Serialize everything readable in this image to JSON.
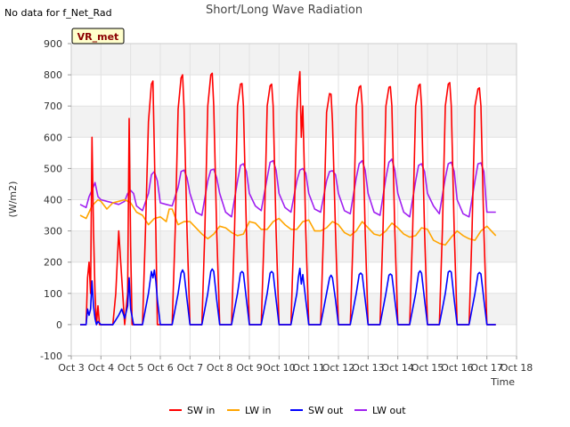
{
  "chart_data": {
    "type": "line",
    "title": "Short/Long Wave Radiation",
    "note": "No data for f_Net_Rad",
    "badge": "VR_met",
    "xlabel": "Time",
    "ylabel": "(W/m2)",
    "xlim": [
      3,
      18
    ],
    "ylim": [
      -100,
      900
    ],
    "x_ticks": [
      3,
      4,
      5,
      6,
      7,
      8,
      9,
      10,
      11,
      12,
      13,
      14,
      15,
      16,
      17,
      18
    ],
    "x_tick_labels": [
      "Oct 3",
      "Oct 4",
      "Oct 5",
      "Oct 6",
      "Oct 7",
      "Oct 8",
      "Oct 9",
      "Oct 10",
      "Oct 11",
      "Oct 12",
      "Oct 13",
      "Oct 14",
      "Oct 15",
      "Oct 16",
      "Oct 17",
      "Oct 18"
    ],
    "y_ticks": [
      -100,
      0,
      100,
      200,
      300,
      400,
      500,
      600,
      700,
      800,
      900
    ],
    "y_tick_labels": [
      "-100",
      "0",
      "100",
      "200",
      "300",
      "400",
      "500",
      "600",
      "700",
      "800",
      "900"
    ],
    "grid": true,
    "legend_position": "bottom",
    "series": [
      {
        "name": "SW in",
        "color": "#ff0000",
        "x": [
          3.3,
          3.5,
          3.55,
          3.6,
          3.65,
          3.7,
          3.75,
          3.8,
          3.85,
          3.9,
          3.95,
          4.0,
          4.4,
          4.5,
          4.6,
          4.8,
          4.9,
          4.95,
          5.0,
          5.05,
          5.1,
          5.15,
          5.2,
          5.3,
          5.4,
          5.5,
          5.6,
          5.7,
          5.75,
          5.8,
          5.85,
          5.9,
          6.0,
          6.1,
          6.2,
          6.4,
          6.5,
          6.6,
          6.7,
          6.75,
          6.8,
          6.9,
          7.0,
          7.2,
          7.4,
          7.5,
          7.6,
          7.7,
          7.75,
          7.8,
          7.9,
          8.0,
          8.2,
          8.4,
          8.5,
          8.6,
          8.7,
          8.75,
          8.8,
          8.9,
          9.0,
          9.2,
          9.4,
          9.5,
          9.6,
          9.7,
          9.75,
          9.8,
          9.9,
          10.0,
          10.2,
          10.4,
          10.5,
          10.6,
          10.65,
          10.7,
          10.75,
          10.8,
          10.85,
          10.9,
          11.0,
          11.2,
          11.4,
          11.5,
          11.6,
          11.7,
          11.75,
          11.8,
          11.9,
          12.0,
          12.2,
          12.4,
          12.5,
          12.6,
          12.7,
          12.75,
          12.8,
          12.9,
          13.0,
          13.2,
          13.4,
          13.5,
          13.6,
          13.7,
          13.75,
          13.8,
          13.9,
          14.0,
          14.2,
          14.4,
          14.5,
          14.6,
          14.7,
          14.75,
          14.8,
          14.9,
          15.0,
          15.2,
          15.4,
          15.5,
          15.6,
          15.7,
          15.75,
          15.8,
          15.9,
          16.0,
          16.2,
          16.4,
          16.5,
          16.6,
          16.7,
          16.75,
          16.8,
          16.9,
          17.0,
          17.3
        ],
        "y": [
          0,
          0,
          150,
          200,
          100,
          600,
          300,
          100,
          0,
          60,
          0,
          0,
          0,
          100,
          300,
          0,
          100,
          660,
          250,
          0,
          0,
          0,
          0,
          0,
          0,
          300,
          650,
          770,
          780,
          560,
          300,
          0,
          0,
          0,
          0,
          0,
          300,
          690,
          790,
          800,
          690,
          300,
          0,
          0,
          0,
          300,
          700,
          800,
          805,
          700,
          300,
          0,
          0,
          0,
          300,
          700,
          770,
          772,
          700,
          300,
          0,
          0,
          0,
          300,
          700,
          765,
          770,
          700,
          300,
          0,
          0,
          0,
          300,
          680,
          760,
          810,
          600,
          700,
          500,
          300,
          0,
          0,
          0,
          300,
          680,
          740,
          738,
          650,
          300,
          0,
          0,
          0,
          300,
          700,
          760,
          765,
          700,
          300,
          0,
          0,
          0,
          300,
          700,
          760,
          762,
          700,
          300,
          0,
          0,
          0,
          300,
          700,
          765,
          770,
          700,
          300,
          0,
          0,
          0,
          300,
          700,
          770,
          775,
          700,
          300,
          0,
          0,
          0,
          300,
          700,
          755,
          758,
          700,
          300,
          0,
          0
        ]
      },
      {
        "name": "LW in",
        "color": "#ffa500",
        "x": [
          3.3,
          3.5,
          3.7,
          3.9,
          4.0,
          4.2,
          4.4,
          4.6,
          4.8,
          5.0,
          5.2,
          5.4,
          5.6,
          5.8,
          6.0,
          6.2,
          6.3,
          6.4,
          6.6,
          6.8,
          7.0,
          7.2,
          7.4,
          7.6,
          7.8,
          8.0,
          8.2,
          8.4,
          8.6,
          8.8,
          9.0,
          9.2,
          9.4,
          9.6,
          9.8,
          10.0,
          10.2,
          10.4,
          10.6,
          10.8,
          11.0,
          11.2,
          11.4,
          11.6,
          11.8,
          12.0,
          12.2,
          12.4,
          12.6,
          12.8,
          13.0,
          13.2,
          13.4,
          13.6,
          13.8,
          14.0,
          14.2,
          14.4,
          14.6,
          14.8,
          15.0,
          15.2,
          15.4,
          15.6,
          15.8,
          16.0,
          16.2,
          16.4,
          16.6,
          16.8,
          17.0,
          17.3
        ],
        "y": [
          350,
          340,
          380,
          400,
          395,
          370,
          390,
          395,
          400,
          390,
          360,
          350,
          320,
          340,
          345,
          330,
          370,
          370,
          320,
          330,
          330,
          310,
          290,
          275,
          290,
          315,
          310,
          295,
          285,
          290,
          330,
          325,
          305,
          305,
          330,
          340,
          320,
          305,
          305,
          330,
          335,
          300,
          300,
          310,
          330,
          320,
          295,
          285,
          300,
          330,
          310,
          290,
          285,
          300,
          325,
          310,
          290,
          280,
          285,
          310,
          305,
          270,
          260,
          255,
          280,
          300,
          285,
          275,
          270,
          300,
          315,
          285
        ]
      },
      {
        "name": "SW out",
        "color": "#0000ff",
        "x": [
          3.3,
          3.5,
          3.55,
          3.6,
          3.65,
          3.7,
          3.75,
          3.8,
          3.85,
          3.9,
          4.0,
          4.4,
          4.6,
          4.7,
          4.8,
          4.9,
          4.95,
          5.0,
          5.1,
          5.2,
          5.4,
          5.6,
          5.7,
          5.75,
          5.8,
          5.85,
          5.9,
          6.0,
          6.4,
          6.6,
          6.7,
          6.75,
          6.8,
          6.9,
          7.0,
          7.4,
          7.6,
          7.7,
          7.75,
          7.8,
          7.9,
          8.0,
          8.4,
          8.6,
          8.7,
          8.75,
          8.8,
          8.9,
          9.0,
          9.4,
          9.6,
          9.7,
          9.75,
          9.8,
          9.9,
          10.0,
          10.4,
          10.6,
          10.65,
          10.7,
          10.75,
          10.8,
          10.9,
          11.0,
          11.4,
          11.6,
          11.7,
          11.75,
          11.8,
          11.9,
          12.0,
          12.4,
          12.6,
          12.7,
          12.75,
          12.8,
          12.9,
          13.0,
          13.4,
          13.6,
          13.7,
          13.75,
          13.8,
          13.9,
          14.0,
          14.4,
          14.6,
          14.7,
          14.75,
          14.8,
          14.9,
          15.0,
          15.4,
          15.6,
          15.7,
          15.75,
          15.8,
          15.9,
          16.0,
          16.4,
          16.6,
          16.7,
          16.75,
          16.8,
          16.9,
          17.0,
          17.3
        ],
        "y": [
          0,
          0,
          50,
          30,
          50,
          140,
          60,
          20,
          0,
          10,
          0,
          0,
          30,
          50,
          20,
          60,
          150,
          50,
          0,
          0,
          0,
          100,
          170,
          150,
          175,
          140,
          80,
          0,
          0,
          100,
          165,
          175,
          165,
          80,
          0,
          0,
          100,
          170,
          178,
          170,
          80,
          0,
          0,
          100,
          165,
          170,
          165,
          80,
          0,
          0,
          100,
          165,
          170,
          165,
          80,
          0,
          0,
          100,
          150,
          180,
          130,
          160,
          80,
          0,
          0,
          100,
          150,
          158,
          150,
          80,
          0,
          0,
          100,
          160,
          165,
          160,
          80,
          0,
          0,
          100,
          158,
          162,
          158,
          80,
          0,
          0,
          100,
          165,
          172,
          165,
          80,
          0,
          0,
          100,
          168,
          172,
          168,
          80,
          0,
          0,
          100,
          162,
          167,
          162,
          80,
          0,
          0
        ]
      },
      {
        "name": "LW out",
        "color": "#a020f0",
        "x": [
          3.3,
          3.5,
          3.6,
          3.7,
          3.8,
          3.9,
          4.0,
          4.2,
          4.4,
          4.6,
          4.8,
          4.9,
          5.0,
          5.1,
          5.2,
          5.4,
          5.6,
          5.7,
          5.8,
          5.9,
          6.0,
          6.2,
          6.4,
          6.6,
          6.7,
          6.8,
          6.9,
          7.0,
          7.2,
          7.4,
          7.6,
          7.7,
          7.8,
          7.9,
          8.0,
          8.2,
          8.4,
          8.6,
          8.7,
          8.8,
          8.9,
          9.0,
          9.2,
          9.4,
          9.6,
          9.7,
          9.8,
          9.9,
          10.0,
          10.2,
          10.4,
          10.6,
          10.7,
          10.8,
          10.9,
          11.0,
          11.2,
          11.4,
          11.6,
          11.7,
          11.8,
          11.9,
          12.0,
          12.2,
          12.4,
          12.6,
          12.7,
          12.8,
          12.9,
          13.0,
          13.2,
          13.4,
          13.6,
          13.7,
          13.8,
          13.9,
          14.0,
          14.2,
          14.4,
          14.6,
          14.7,
          14.8,
          14.9,
          15.0,
          15.2,
          15.4,
          15.6,
          15.7,
          15.8,
          15.9,
          16.0,
          16.2,
          16.4,
          16.6,
          16.7,
          16.8,
          16.9,
          17.0,
          17.3
        ],
        "y": [
          385,
          375,
          410,
          430,
          455,
          410,
          400,
          395,
          390,
          385,
          395,
          420,
          430,
          420,
          380,
          365,
          420,
          480,
          490,
          460,
          390,
          385,
          380,
          440,
          490,
          495,
          470,
          420,
          360,
          350,
          460,
          495,
          498,
          470,
          420,
          360,
          345,
          460,
          510,
          515,
          490,
          420,
          380,
          365,
          470,
          520,
          525,
          495,
          420,
          375,
          360,
          460,
          495,
          500,
          485,
          420,
          370,
          360,
          460,
          490,
          493,
          480,
          420,
          365,
          355,
          470,
          515,
          525,
          495,
          420,
          360,
          350,
          470,
          520,
          530,
          495,
          420,
          360,
          345,
          460,
          510,
          515,
          490,
          420,
          380,
          355,
          470,
          515,
          520,
          490,
          400,
          355,
          345,
          460,
          515,
          518,
          490,
          360,
          360
        ]
      }
    ]
  }
}
